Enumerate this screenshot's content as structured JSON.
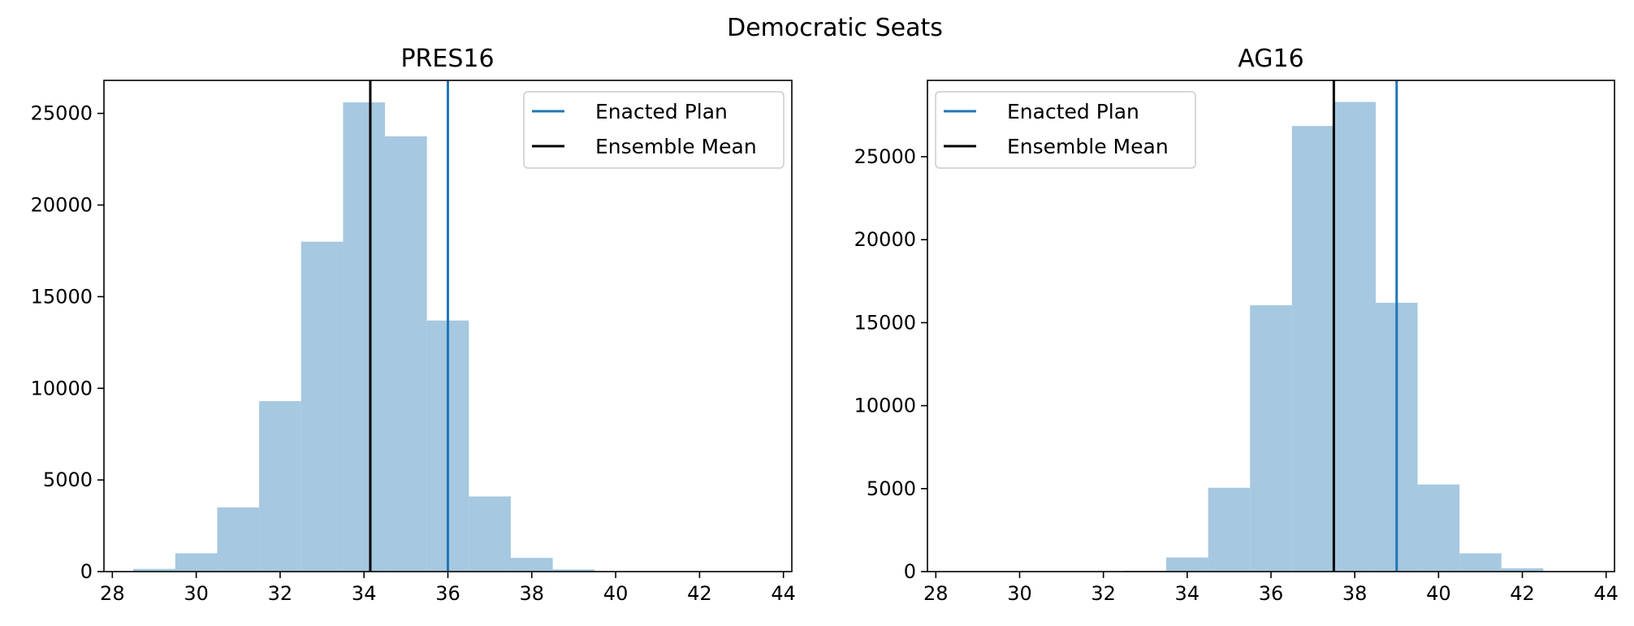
{
  "figure": {
    "title": "Democratic Seats"
  },
  "colors": {
    "histogram": "#a6c8e0",
    "enacted": "#1f77b4",
    "mean": "#000000"
  },
  "chart_data": [
    {
      "type": "bar",
      "title": "PRES16",
      "xlabel": "",
      "ylabel": "",
      "xlim": [
        27.8,
        44.2
      ],
      "ylim": [
        0,
        26800
      ],
      "xticks": [
        28,
        30,
        32,
        34,
        36,
        38,
        40,
        42,
        44
      ],
      "yticks": [
        0,
        5000,
        10000,
        15000,
        20000,
        25000
      ],
      "bin_width": 1,
      "bins": [
        {
          "center": 29,
          "count": 150
        },
        {
          "center": 30,
          "count": 1000
        },
        {
          "center": 31,
          "count": 3500
        },
        {
          "center": 32,
          "count": 9300
        },
        {
          "center": 33,
          "count": 18000
        },
        {
          "center": 34,
          "count": 25600
        },
        {
          "center": 35,
          "count": 23750
        },
        {
          "center": 36,
          "count": 13700
        },
        {
          "center": 37,
          "count": 4100
        },
        {
          "center": 38,
          "count": 750
        },
        {
          "center": 39,
          "count": 120
        },
        {
          "center": 40,
          "count": 10
        }
      ],
      "enacted_plan": 36,
      "ensemble_mean": 34.15,
      "legend": {
        "position": "upper right",
        "entries": [
          "Enacted Plan",
          "Ensemble Mean"
        ]
      }
    },
    {
      "type": "bar",
      "title": "AG16",
      "xlabel": "",
      "ylabel": "",
      "xlim": [
        27.8,
        44.2
      ],
      "ylim": [
        0,
        29600
      ],
      "xticks": [
        28,
        30,
        32,
        34,
        36,
        38,
        40,
        42,
        44
      ],
      "yticks": [
        0,
        5000,
        10000,
        15000,
        20000,
        25000
      ],
      "bin_width": 1,
      "bins": [
        {
          "center": 33,
          "count": 50
        },
        {
          "center": 34,
          "count": 850
        },
        {
          "center": 35,
          "count": 5050
        },
        {
          "center": 36,
          "count": 16050
        },
        {
          "center": 37,
          "count": 26850
        },
        {
          "center": 38,
          "count": 28300
        },
        {
          "center": 39,
          "count": 16200
        },
        {
          "center": 40,
          "count": 5250
        },
        {
          "center": 41,
          "count": 1100
        },
        {
          "center": 42,
          "count": 200
        },
        {
          "center": 43,
          "count": 15
        }
      ],
      "enacted_plan": 39,
      "ensemble_mean": 37.5,
      "legend": {
        "position": "upper left",
        "entries": [
          "Enacted Plan",
          "Ensemble Mean"
        ]
      }
    }
  ]
}
